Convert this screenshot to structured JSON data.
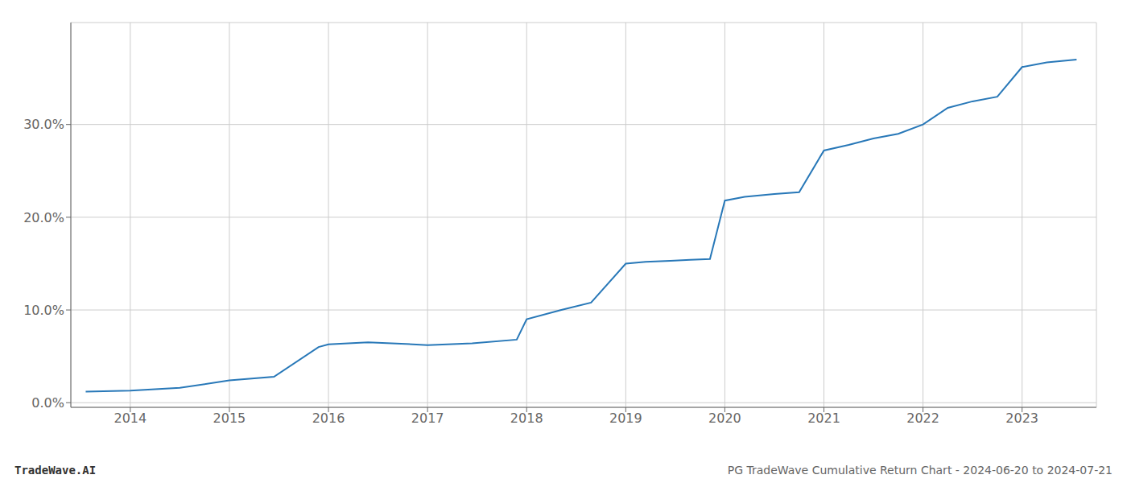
{
  "chart_data": {
    "type": "line",
    "title": "PG TradeWave Cumulative Return Chart - 2024-06-20 to 2024-07-21",
    "annotations": [
      "TradeWave.AI"
    ],
    "x": [
      2013.55,
      2014.0,
      2014.5,
      2015.0,
      2015.45,
      2015.9,
      2016.0,
      2016.4,
      2016.85,
      2017.0,
      2017.45,
      2017.9,
      2018.0,
      2018.35,
      2018.65,
      2019.0,
      2019.2,
      2019.45,
      2019.65,
      2019.85,
      2020.0,
      2020.2,
      2020.5,
      2020.75,
      2021.0,
      2021.25,
      2021.5,
      2021.75,
      2022.0,
      2022.25,
      2022.5,
      2022.75,
      2023.0,
      2023.25,
      2023.55
    ],
    "values": [
      0.012,
      0.013,
      0.016,
      0.024,
      0.028,
      0.06,
      0.063,
      0.065,
      0.063,
      0.062,
      0.064,
      0.068,
      0.09,
      0.1,
      0.108,
      0.15,
      0.152,
      0.153,
      0.154,
      0.155,
      0.218,
      0.222,
      0.225,
      0.227,
      0.272,
      0.278,
      0.285,
      0.29,
      0.3,
      0.318,
      0.325,
      0.33,
      0.362,
      0.367,
      0.37
    ],
    "color": "#2878b8",
    "xlim": [
      2013.4,
      2023.75
    ],
    "ylim": [
      -0.005,
      0.41
    ],
    "xticks": [
      2014,
      2015,
      2016,
      2017,
      2018,
      2019,
      2020,
      2021,
      2022,
      2023
    ],
    "yticks": [
      {
        "value": 0.0,
        "label": "0.0%"
      },
      {
        "value": 0.1,
        "label": "10.0%"
      },
      {
        "value": 0.2,
        "label": "20.0%"
      },
      {
        "value": 0.3,
        "label": "30.0%"
      }
    ],
    "grid": true
  }
}
